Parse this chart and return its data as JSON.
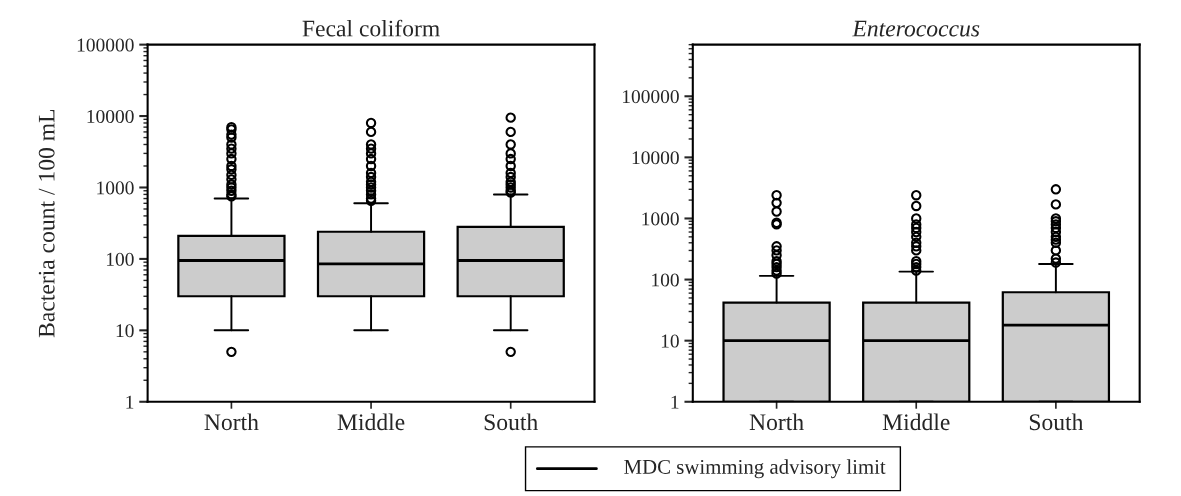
{
  "chart_data": [
    {
      "type": "box",
      "title": "Fecal coliform",
      "ylabel": "Bacteria count / 100 mL",
      "categories": [
        "North",
        "Middle",
        "South"
      ],
      "log": true,
      "ylim": [
        1,
        100000
      ],
      "yticks": [
        1,
        10,
        100,
        1000,
        10000,
        100000
      ],
      "color": "#cccccc",
      "boxes": [
        {
          "low": 10,
          "q1": 30,
          "median": 95,
          "q3": 210,
          "high": 700,
          "outliers": [
            5,
            750,
            800,
            900,
            1000,
            1100,
            1300,
            1500,
            1800,
            2000,
            2500,
            3000,
            3500,
            4000,
            5000,
            5500,
            6500,
            7000
          ]
        },
        {
          "low": 10,
          "q1": 30,
          "median": 85,
          "q3": 240,
          "high": 600,
          "outliers": [
            650,
            700,
            800,
            900,
            1000,
            1100,
            1200,
            1400,
            1600,
            2000,
            2500,
            3000,
            3500,
            4000,
            6000,
            8000
          ]
        },
        {
          "low": 10,
          "q1": 30,
          "median": 95,
          "q3": 280,
          "high": 800,
          "outliers": [
            5,
            850,
            900,
            1000,
            1100,
            1200,
            1400,
            1600,
            2000,
            2500,
            3000,
            4000,
            6000,
            9500
          ]
        }
      ]
    },
    {
      "type": "box",
      "title": "Enterococcus",
      "categories": [
        "North",
        "Middle",
        "South"
      ],
      "log": true,
      "ylim": [
        1,
        700000
      ],
      "yticks": [
        1,
        10,
        100,
        1000,
        10000,
        100000
      ],
      "color": "#cccccc",
      "boxes": [
        {
          "low": 1,
          "q1": 1,
          "median": 10,
          "q3": 42,
          "high": 115,
          "outliers": [
            125,
            140,
            160,
            180,
            200,
            250,
            300,
            350,
            800,
            850,
            1300,
            1800,
            2400
          ]
        },
        {
          "low": 1,
          "q1": 1,
          "median": 10,
          "q3": 42,
          "high": 135,
          "outliers": [
            140,
            160,
            180,
            200,
            300,
            350,
            400,
            500,
            600,
            700,
            800,
            1000,
            1600,
            2400
          ]
        },
        {
          "low": 1,
          "q1": 1,
          "median": 18,
          "q3": 62,
          "high": 180,
          "outliers": [
            190,
            220,
            300,
            400,
            450,
            500,
            600,
            700,
            800,
            900,
            1000,
            1700,
            3000
          ]
        }
      ],
      "annotations": [
        "MDC swimming advisory limit"
      ]
    }
  ]
}
